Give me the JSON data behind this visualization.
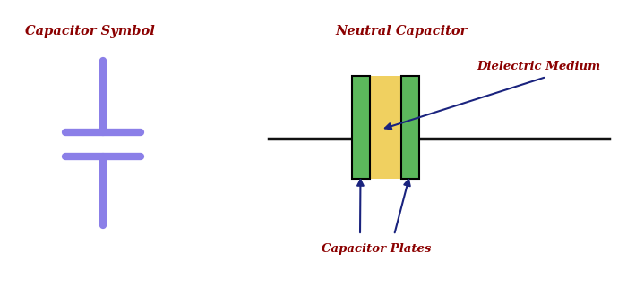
{
  "bg_color": "#ffffff",
  "label_color": "#8b0000",
  "capacitor_symbol_label": "Capacitor Symbol",
  "neutral_capacitor_label": "Neutral Capacitor",
  "dielectric_medium_label": "Dielectric Medium",
  "capacitor_plates_label": "Capacitor Plates",
  "purple_color": "#8b7fe8",
  "green_color": "#5cb85c",
  "yellow_color": "#f0d060",
  "black_color": "#000000",
  "navy_color": "#1a237e",
  "line_color": "#111111",
  "figw": 7.0,
  "figh": 3.2,
  "dpi": 100
}
